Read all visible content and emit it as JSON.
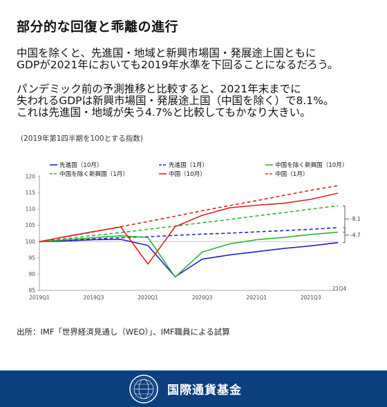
{
  "header": {
    "title": "部分的な回復と乖離の進行"
  },
  "body": {
    "para1_line1": "中国を除くと、先進国・地域と新興市場国・発展途上国ともに",
    "para1_line2": "GDPが2021年においても2019年水準を下回ることになるだろう。",
    "para2_line1": "パンデミック前の予測推移と比較すると、2021年末までに",
    "para2_line2": "失われるGDPは新興市場国・発展途上国（中国を除く）で8.1%。",
    "para2_line3": "これは先進国・地域が失う4.7%と比較してもかなり大きい。",
    "note": "(2019年第1四半期を100とする指数)"
  },
  "chart_data": {
    "type": "line",
    "x": [
      "2019Q1",
      "2019Q2",
      "2019Q3",
      "2019Q4",
      "2020Q1",
      "2020Q2",
      "2020Q3",
      "2020Q4",
      "2021Q1",
      "2021Q2",
      "2021Q3",
      "2021Q4"
    ],
    "xticks": [
      "2019Q1",
      "2019Q3",
      "2020Q1",
      "2020Q3",
      "2021Q1",
      "2021Q3"
    ],
    "last_tick_label": "21Q4",
    "ylim": [
      85,
      120
    ],
    "yticks": [
      85,
      90,
      95,
      100,
      105,
      110,
      115,
      120
    ],
    "reference_line": 100,
    "series": [
      {
        "name": "先進国（10月）",
        "color": "#1f1fd0",
        "dash": false,
        "values": [
          100,
          100.2,
          100.6,
          100.7,
          98.8,
          89.2,
          94.6,
          95.9,
          96.9,
          97.9,
          98.7,
          99.7
        ]
      },
      {
        "name": "先進国（1月）",
        "color": "#1f1fd0",
        "dash": true,
        "values": [
          100,
          100.4,
          100.8,
          101.2,
          101.5,
          101.9,
          102.3,
          102.6,
          103.0,
          103.4,
          103.8,
          104.3
        ]
      },
      {
        "name": "中国を除く新興国（10月）",
        "color": "#2bb32b",
        "dash": false,
        "values": [
          100,
          100.6,
          101.2,
          101.8,
          101.3,
          89.1,
          96.8,
          99.3,
          100.6,
          101.3,
          102.2,
          102.9
        ]
      },
      {
        "name": "中国を除く新興国（1月）",
        "color": "#2bb32b",
        "dash": true,
        "values": [
          100,
          100.9,
          101.9,
          102.8,
          103.8,
          104.8,
          105.8,
          106.8,
          107.9,
          108.9,
          110.0,
          111.0
        ]
      },
      {
        "name": "中国（10月）",
        "color": "#e02020",
        "dash": false,
        "values": [
          100,
          101.6,
          103.1,
          104.5,
          93.1,
          104.6,
          108.1,
          110.4,
          111.2,
          111.8,
          113.0,
          114.9
        ]
      },
      {
        "name": "中国（1月）",
        "color": "#e02020",
        "dash": true,
        "values": [
          100,
          101.5,
          103.0,
          104.6,
          106.2,
          107.8,
          109.5,
          111.1,
          112.6,
          114.2,
          115.8,
          117.2
        ]
      }
    ],
    "annotations": [
      {
        "label": "-8.1"
      },
      {
        "label": "-4.7"
      }
    ],
    "legend_placement": "top"
  },
  "footer": {
    "source": "出所：IMF「世界経済見通し（WEO）」、IMF職員による試算",
    "org_name": "国際通貨基金",
    "colors": {
      "band": "#0b3f80",
      "text": "#ffffff"
    }
  }
}
